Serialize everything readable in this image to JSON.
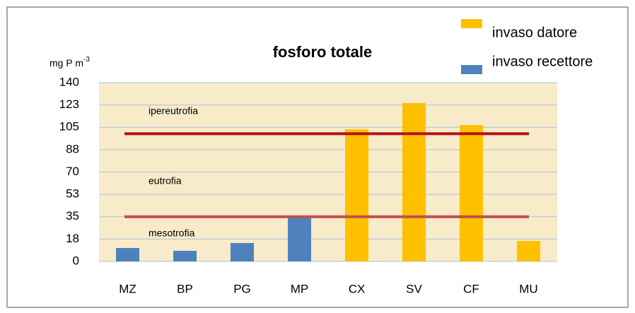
{
  "chart_data": {
    "type": "bar",
    "title": "fosforo totale",
    "y_label": "mg P m",
    "y_label_exponent": "-3",
    "categories": [
      "MZ",
      "BP",
      "PG",
      "MP",
      "CX",
      "SV",
      "CF",
      "MU"
    ],
    "series": [
      {
        "name": "invaso datore",
        "color": "#ffc000",
        "values": [
          null,
          null,
          null,
          null,
          103.5,
          124,
          106.8,
          16
        ]
      },
      {
        "name": "invaso recettore",
        "color": "#4f81bd",
        "values": [
          10.5,
          8.3,
          14.4,
          34.3,
          null,
          null,
          null,
          null
        ]
      }
    ],
    "ylim": [
      0,
      140
    ],
    "yticks": [
      0,
      {
        "value": 17.5,
        "label": "18"
      },
      35,
      {
        "value": 52.5,
        "label": "53"
      },
      70,
      {
        "value": 87.5,
        "label": "88"
      },
      105,
      {
        "value": 122.5,
        "label": "123"
      },
      140
    ],
    "grid": true,
    "reference_lines": [
      {
        "value": 100,
        "color": "#b5121b"
      },
      {
        "value": 35,
        "color": "#c0504d"
      }
    ],
    "annotations": [
      "ipereutrofia",
      "eutrofia",
      "mesotrofia"
    ],
    "legend": "top-right"
  }
}
